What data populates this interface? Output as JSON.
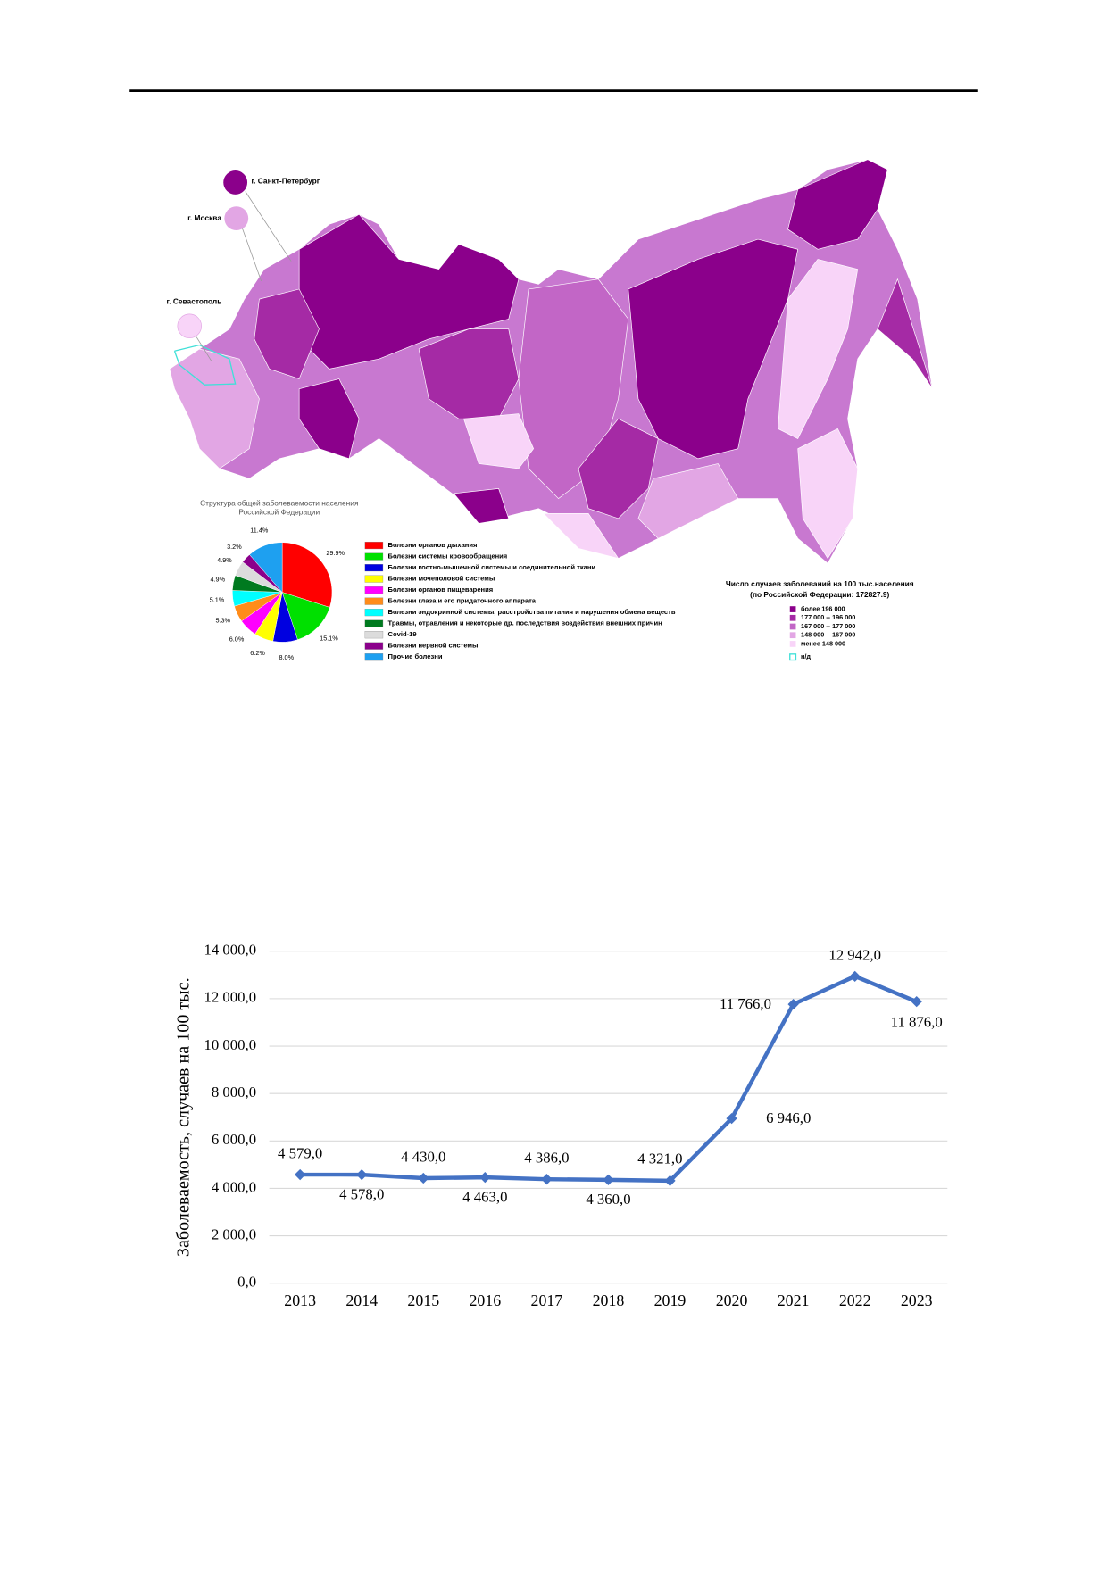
{
  "map": {
    "cities": [
      "г. Санкт-Петербург",
      "г. Москва",
      "г. Севастополь"
    ],
    "legend": {
      "title": "Число случаев заболеваний на 100 тыс.населения",
      "subtitle": "(по Российской Федерации: 172827.9)",
      "items": [
        "более 196 000",
        "177 000 -- 196 000",
        "167 000 -- 177 000",
        "148 000 -- 167 000",
        "менее 148 000",
        "н/д"
      ],
      "colors": [
        "#8b008b",
        "#a52aa5",
        "#c266c6",
        "#e2a6e4",
        "#f8d4f8",
        "#40e0d8"
      ]
    }
  },
  "chart_data": [
    {
      "type": "pie",
      "title": [
        "Структура общей заболеваемости населения",
        "Российской Федерации"
      ],
      "categories": [
        "Болезни органов дыхания",
        "Болезни системы кровообращения",
        "Болезни костно-мышечной системы и соединительной ткани",
        "Болезни мочеполовой системы",
        "Болезни органов пищеварения",
        "Болезни глаза и его придаточного аппарата",
        "Болезни эндокринной системы, расстройства питания и нарушения обмена веществ",
        "Травмы, отравления и некоторые др. последствия воздействия внешних причин",
        "Covid-19",
        "Болезни нервной системы",
        "Прочие болезни"
      ],
      "values": [
        29.9,
        15.1,
        8.0,
        6.2,
        6.0,
        5.3,
        5.1,
        4.9,
        4.9,
        3.2,
        11.4
      ],
      "value_labels": [
        "29.9%",
        "15.1%",
        "8.0%",
        "6.2%",
        "6.0%",
        "5.3%",
        "5.1%",
        "4.9%",
        "4.9%",
        "3.2%",
        "11.4%"
      ],
      "colors": [
        "#ff0000",
        "#00e000",
        "#0000e0",
        "#ffff00",
        "#ff00ff",
        "#ff8c1a",
        "#00ffff",
        "#007a1f",
        "#dcdcdc",
        "#8b008b",
        "#1ea0f0"
      ]
    },
    {
      "type": "line",
      "y_label": "Заболеваемость, случаев на 100 тыс.",
      "categories": [
        "2013",
        "2014",
        "2015",
        "2016",
        "2017",
        "2018",
        "2019",
        "2020",
        "2021",
        "2022",
        "2023"
      ],
      "values": [
        4579,
        4578,
        4430,
        4463,
        4386,
        4360,
        4321,
        6946,
        11766,
        12942,
        11876
      ],
      "value_labels": [
        "4 579,0",
        "4 578,0",
        "4 430,0",
        "4 463,0",
        "4 386,0",
        "4 360,0",
        "4 321,0",
        "6 946,0",
        "11 766,0",
        "12 942,0",
        "11 876,0"
      ],
      "color": "#4472c4",
      "ylim": [
        0,
        14000
      ],
      "yticks": [
        {
          "value": 0,
          "label": "0,0"
        },
        {
          "value": 2000,
          "label": "2 000,0"
        },
        {
          "value": 4000,
          "label": "4 000,0"
        },
        {
          "value": 6000,
          "label": "6 000,0"
        },
        {
          "value": 8000,
          "label": "8 000,0"
        },
        {
          "value": 10000,
          "label": "10 000,0"
        },
        {
          "value": 12000,
          "label": "12 000,0"
        },
        {
          "value": 14000,
          "label": "14 000,0"
        }
      ],
      "grid": true
    }
  ]
}
